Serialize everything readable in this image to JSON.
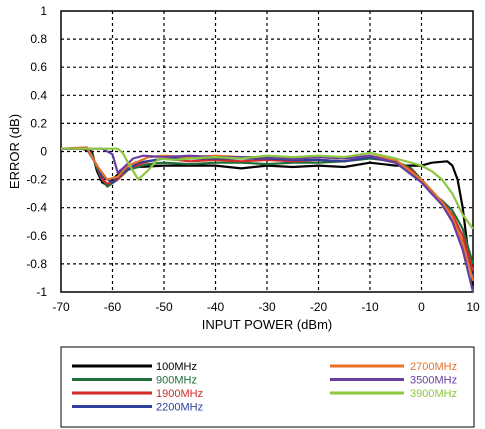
{
  "chart_data": {
    "type": "line",
    "title": "",
    "xlabel": "INPUT POWER (dBm)",
    "ylabel": "ERROR (dB)",
    "xlim": [
      -70,
      10
    ],
    "ylim": [
      -1,
      1
    ],
    "x_ticks": [
      "-70",
      "-60",
      "-50",
      "-40",
      "-30",
      "-20",
      "-10",
      "0",
      "10"
    ],
    "y_ticks": [
      "1",
      "0.8",
      "0.6",
      "0.4",
      "0.2",
      "0",
      "-0.2",
      "-0.4",
      "-0.6",
      "-0.8",
      "-1"
    ],
    "grid": true,
    "legend_position": "bottom",
    "series": [
      {
        "name": "100MHz",
        "color": "#000000",
        "points": [
          [
            -70,
            0.02
          ],
          [
            -66,
            0.02
          ],
          [
            -64,
            0.0
          ],
          [
            -63,
            -0.14
          ],
          [
            -62,
            -0.22
          ],
          [
            -61,
            -0.24
          ],
          [
            -60,
            -0.2
          ],
          [
            -58,
            -0.13
          ],
          [
            -55,
            -0.11
          ],
          [
            -50,
            -0.1
          ],
          [
            -45,
            -0.1
          ],
          [
            -40,
            -0.1
          ],
          [
            -35,
            -0.12
          ],
          [
            -30,
            -0.1
          ],
          [
            -25,
            -0.11
          ],
          [
            -20,
            -0.1
          ],
          [
            -15,
            -0.11
          ],
          [
            -10,
            -0.08
          ],
          [
            -5,
            -0.1
          ],
          [
            0,
            -0.1
          ],
          [
            2,
            -0.08
          ],
          [
            5,
            -0.07
          ],
          [
            6,
            -0.1
          ],
          [
            7,
            -0.2
          ],
          [
            8,
            -0.4
          ],
          [
            9,
            -0.7
          ],
          [
            10,
            -0.95
          ]
        ]
      },
      {
        "name": "900MHz",
        "color": "#1f6e3a",
        "points": [
          [
            -70,
            0.02
          ],
          [
            -65,
            0.02
          ],
          [
            -64,
            -0.02
          ],
          [
            -63,
            -0.12
          ],
          [
            -62,
            -0.2
          ],
          [
            -61,
            -0.25
          ],
          [
            -59,
            -0.2
          ],
          [
            -57,
            -0.13
          ],
          [
            -53,
            -0.09
          ],
          [
            -50,
            -0.08
          ],
          [
            -45,
            -0.09
          ],
          [
            -40,
            -0.08
          ],
          [
            -35,
            -0.08
          ],
          [
            -30,
            -0.09
          ],
          [
            -25,
            -0.08
          ],
          [
            -20,
            -0.08
          ],
          [
            -15,
            -0.07
          ],
          [
            -10,
            -0.05
          ],
          [
            -5,
            -0.07
          ],
          [
            -2,
            -0.12
          ],
          [
            0,
            -0.2
          ],
          [
            2,
            -0.3
          ],
          [
            4,
            -0.35
          ],
          [
            6,
            -0.42
          ],
          [
            8,
            -0.55
          ],
          [
            10,
            -0.8
          ]
        ]
      },
      {
        "name": "1900MHz",
        "color": "#d42a2a",
        "points": [
          [
            -70,
            0.02
          ],
          [
            -65,
            0.02
          ],
          [
            -63,
            -0.1
          ],
          [
            -62,
            -0.2
          ],
          [
            -61,
            -0.23
          ],
          [
            -59,
            -0.2
          ],
          [
            -57,
            -0.12
          ],
          [
            -53,
            -0.07
          ],
          [
            -50,
            -0.05
          ],
          [
            -45,
            -0.07
          ],
          [
            -40,
            -0.06
          ],
          [
            -35,
            -0.07
          ],
          [
            -30,
            -0.06
          ],
          [
            -25,
            -0.07
          ],
          [
            -20,
            -0.06
          ],
          [
            -15,
            -0.07
          ],
          [
            -10,
            -0.04
          ],
          [
            -5,
            -0.08
          ],
          [
            -2,
            -0.13
          ],
          [
            0,
            -0.22
          ],
          [
            2,
            -0.3
          ],
          [
            4,
            -0.36
          ],
          [
            6,
            -0.45
          ],
          [
            8,
            -0.6
          ],
          [
            10,
            -0.85
          ]
        ]
      },
      {
        "name": "2200MHz",
        "color": "#2e3f9e",
        "points": [
          [
            -70,
            0.02
          ],
          [
            -65,
            0.02
          ],
          [
            -63,
            -0.1
          ],
          [
            -62,
            -0.18
          ],
          [
            -60,
            -0.22
          ],
          [
            -58,
            -0.15
          ],
          [
            -55,
            -0.08
          ],
          [
            -50,
            -0.05
          ],
          [
            -45,
            -0.05
          ],
          [
            -40,
            -0.05
          ],
          [
            -35,
            -0.05
          ],
          [
            -30,
            -0.05
          ],
          [
            -25,
            -0.06
          ],
          [
            -20,
            -0.06
          ],
          [
            -15,
            -0.07
          ],
          [
            -10,
            -0.04
          ],
          [
            -5,
            -0.08
          ],
          [
            0,
            -0.2
          ],
          [
            2,
            -0.28
          ],
          [
            4,
            -0.36
          ],
          [
            6,
            -0.48
          ],
          [
            8,
            -0.65
          ],
          [
            10,
            -0.9
          ]
        ]
      },
      {
        "name": "2700MHz",
        "color": "#e8722a",
        "points": [
          [
            -70,
            0.02
          ],
          [
            -65,
            0.03
          ],
          [
            -63,
            -0.1
          ],
          [
            -61,
            -0.2
          ],
          [
            -59,
            -0.18
          ],
          [
            -57,
            -0.1
          ],
          [
            -53,
            -0.04
          ],
          [
            -50,
            -0.03
          ],
          [
            -45,
            -0.04
          ],
          [
            -40,
            -0.03
          ],
          [
            -35,
            -0.04
          ],
          [
            -30,
            -0.04
          ],
          [
            -25,
            -0.05
          ],
          [
            -20,
            -0.04
          ],
          [
            -15,
            -0.05
          ],
          [
            -10,
            -0.03
          ],
          [
            -5,
            -0.06
          ],
          [
            0,
            -0.2
          ],
          [
            2,
            -0.28
          ],
          [
            4,
            -0.36
          ],
          [
            6,
            -0.47
          ],
          [
            8,
            -0.65
          ],
          [
            10,
            -0.92
          ]
        ]
      },
      {
        "name": "3500MHz",
        "color": "#6a3ea1",
        "points": [
          [
            -70,
            0.02
          ],
          [
            -62,
            0.02
          ],
          [
            -60,
            -0.02
          ],
          [
            -59,
            -0.15
          ],
          [
            -58,
            -0.12
          ],
          [
            -56,
            -0.05
          ],
          [
            -54,
            -0.03
          ],
          [
            -50,
            -0.04
          ],
          [
            -45,
            -0.03
          ],
          [
            -40,
            -0.04
          ],
          [
            -35,
            -0.04
          ],
          [
            -30,
            -0.04
          ],
          [
            -25,
            -0.05
          ],
          [
            -20,
            -0.04
          ],
          [
            -15,
            -0.05
          ],
          [
            -10,
            -0.03
          ],
          [
            -5,
            -0.08
          ],
          [
            0,
            -0.22
          ],
          [
            2,
            -0.3
          ],
          [
            4,
            -0.38
          ],
          [
            6,
            -0.5
          ],
          [
            8,
            -0.7
          ],
          [
            10,
            -1.0
          ]
        ]
      },
      {
        "name": "3900MHz",
        "color": "#8dc63f",
        "points": [
          [
            -70,
            0.02
          ],
          [
            -59,
            0.02
          ],
          [
            -58,
            -0.01
          ],
          [
            -57,
            -0.08
          ],
          [
            -55,
            -0.2
          ],
          [
            -53,
            -0.13
          ],
          [
            -51,
            -0.05
          ],
          [
            -48,
            -0.06
          ],
          [
            -45,
            -0.05
          ],
          [
            -40,
            -0.04
          ],
          [
            -35,
            -0.05
          ],
          [
            -30,
            -0.03
          ],
          [
            -25,
            -0.04
          ],
          [
            -20,
            -0.03
          ],
          [
            -15,
            -0.04
          ],
          [
            -10,
            -0.01
          ],
          [
            -5,
            -0.05
          ],
          [
            0,
            -0.1
          ],
          [
            2,
            -0.14
          ],
          [
            4,
            -0.2
          ],
          [
            6,
            -0.3
          ],
          [
            8,
            -0.45
          ],
          [
            10,
            -0.55
          ]
        ]
      }
    ]
  }
}
